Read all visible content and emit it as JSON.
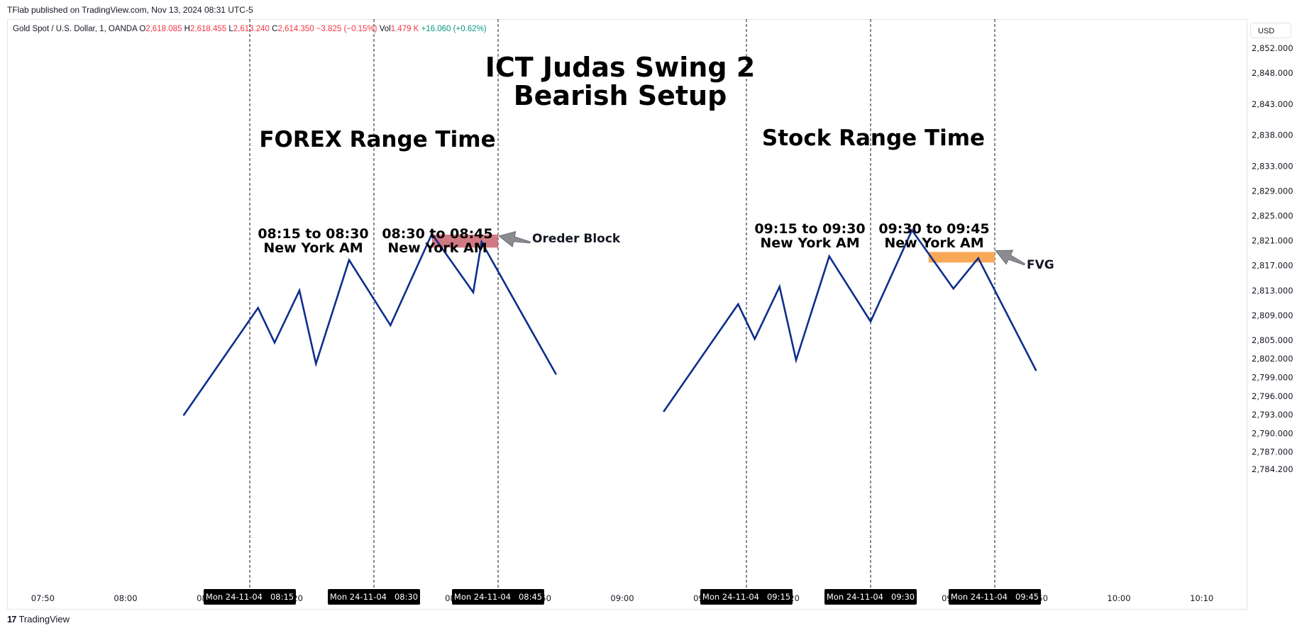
{
  "header": {
    "published": "TFlab published on TradingView.com, Nov 13, 2024 08:31 UTC-5"
  },
  "legend": {
    "symbol": "Gold Spot / U.S. Dollar, 1, OANDA",
    "o_label": "O",
    "o_value": "2,618.085",
    "h_label": "H",
    "h_value": "2,618.455",
    "l_label": "L",
    "l_value": "2,613.240",
    "c_label": "C",
    "c_value": "2,614.350",
    "change": "−3.825 (−0.15%)",
    "vol_label": "Vol",
    "vol_value": "1.479 K",
    "vol_change": "+16.060 (+0.62%)"
  },
  "currency_button": "USD",
  "footer": {
    "brand": "TradingView",
    "logo_glyph": "17"
  },
  "chart_data": {
    "type": "line",
    "title": "ICT Judas Swing 2",
    "subtitle": "Bearish Setup",
    "colors": {
      "line": "#0f2e8c",
      "order_block": "#c9636d",
      "fvg": "#f79f45",
      "arrow": "#8a8c90"
    },
    "y_axis": {
      "ticks": [
        "2,852.000",
        "2,848.000",
        "2,843.000",
        "2,838.000",
        "2,833.000",
        "2,829.000",
        "2,825.000",
        "2,821.000",
        "2,817.000",
        "2,813.000",
        "2,809.000",
        "2,805.000",
        "2,802.000",
        "2,799.000",
        "2,796.000",
        "2,793.000",
        "2,790.000",
        "2,787.000",
        "2,784.200"
      ],
      "tick_values": [
        2852,
        2848,
        2843,
        2838,
        2833,
        2829,
        2825,
        2821,
        2817,
        2813,
        2809,
        2805,
        2802,
        2799,
        2796,
        2793,
        2790,
        2787,
        2784.2
      ]
    },
    "x_axis": {
      "ticks": [
        {
          "label": "07:50",
          "minute": 470
        },
        {
          "label": "08:00",
          "minute": 480
        },
        {
          "label": "09:00",
          "minute": 540
        },
        {
          "label": "10:00",
          "minute": 600
        },
        {
          "label": "10:10",
          "minute": 610
        }
      ],
      "partial_ticks": [
        {
          "label": "08:10",
          "minute": 490
        },
        {
          "label": "08:20",
          "minute": 500
        },
        {
          "label": "08:40",
          "minute": 520
        },
        {
          "label": "08:50",
          "minute": 530
        },
        {
          "label": "09:10",
          "minute": 550
        },
        {
          "label": "09:20",
          "minute": 560
        },
        {
          "label": "09:40",
          "minute": 580
        },
        {
          "label": "09:50",
          "minute": 590
        }
      ],
      "markers": [
        {
          "label": "Mon 24-11-04   08:15",
          "minute": 495
        },
        {
          "label": "Mon 24-11-04   08:30",
          "minute": 510
        },
        {
          "label": "Mon 24-11-04   08:45",
          "minute": 525
        },
        {
          "label": "Mon 24-11-04   09:15",
          "minute": 555
        },
        {
          "label": "Mon 24-11-04   09:30",
          "minute": 570
        },
        {
          "label": "Mon 24-11-04   09:45",
          "minute": 585
        }
      ]
    },
    "series": [
      {
        "points": [
          {
            "x": 487.0,
            "y": 2792.9
          },
          {
            "x": 496.0,
            "y": 2810.2
          },
          {
            "x": 498.0,
            "y": 2804.6
          },
          {
            "x": 501.0,
            "y": 2813.0
          },
          {
            "x": 503.0,
            "y": 2801.2
          },
          {
            "x": 507.0,
            "y": 2817.9
          },
          {
            "x": 512.0,
            "y": 2807.4
          },
          {
            "x": 517.0,
            "y": 2822.1
          },
          {
            "x": 522.0,
            "y": 2812.7
          },
          {
            "x": 523.0,
            "y": 2820.8
          },
          {
            "x": 532.0,
            "y": 2799.5
          }
        ]
      },
      {
        "points": [
          {
            "x": 545.0,
            "y": 2793.5
          },
          {
            "x": 554.0,
            "y": 2810.8
          },
          {
            "x": 556.0,
            "y": 2805.2
          },
          {
            "x": 559.0,
            "y": 2813.6
          },
          {
            "x": 561.0,
            "y": 2801.8
          },
          {
            "x": 565.0,
            "y": 2818.5
          },
          {
            "x": 570.0,
            "y": 2808.0
          },
          {
            "x": 575.0,
            "y": 2822.7
          },
          {
            "x": 580.0,
            "y": 2813.3
          },
          {
            "x": 583.0,
            "y": 2818.2
          },
          {
            "x": 590.0,
            "y": 2800.1
          }
        ]
      }
    ],
    "zones": [
      {
        "label": "Oreder Block",
        "x0": 517.0,
        "x1": 525.0,
        "y0": 2819.9,
        "y1": 2822.0
      },
      {
        "label": "FVG",
        "x0": 577.0,
        "x1": 585.0,
        "y0": 2817.5,
        "y1": 2819.2
      }
    ],
    "annotations": {
      "forex_title": "FOREX Range Time",
      "stock_title": "Stock Range Time",
      "windows": [
        {
          "line1": "08:15 to 08:30",
          "line2": "New York AM",
          "x0": 495,
          "x1": 510
        },
        {
          "line1": "08:30 to 08:45",
          "line2": "New York AM",
          "x0": 510,
          "x1": 525
        },
        {
          "line1": "09:15 to 09:30",
          "line2": "New York AM",
          "x0": 555,
          "x1": 570
        },
        {
          "line1": "09:30 to 09:45",
          "line2": "New York AM",
          "x0": 570,
          "x1": 585
        }
      ]
    }
  }
}
